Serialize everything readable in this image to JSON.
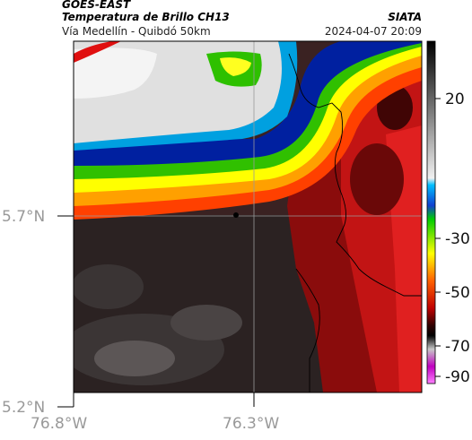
{
  "header": {
    "satellite": "GOES-EAST",
    "product": "Temperatura de Brillo CH13",
    "region": "Vía Medellín - Quibdó 50km",
    "source": "SIATA",
    "datetime": "2024-04-07 20:09"
  },
  "axes": {
    "lat_labels": [
      "5.7°N",
      "5.2°N"
    ],
    "lon_labels": [
      "76.8°W",
      "76.3°W"
    ]
  },
  "colorbar": {
    "ticks": [
      "20",
      "-30",
      "-50",
      "-70",
      "-90"
    ]
  },
  "colors": {
    "warm_cloud": "#b81010",
    "surface_dark": "#2a2020",
    "cold_cloud": "#d9d9d9",
    "border_line": "#000000"
  }
}
